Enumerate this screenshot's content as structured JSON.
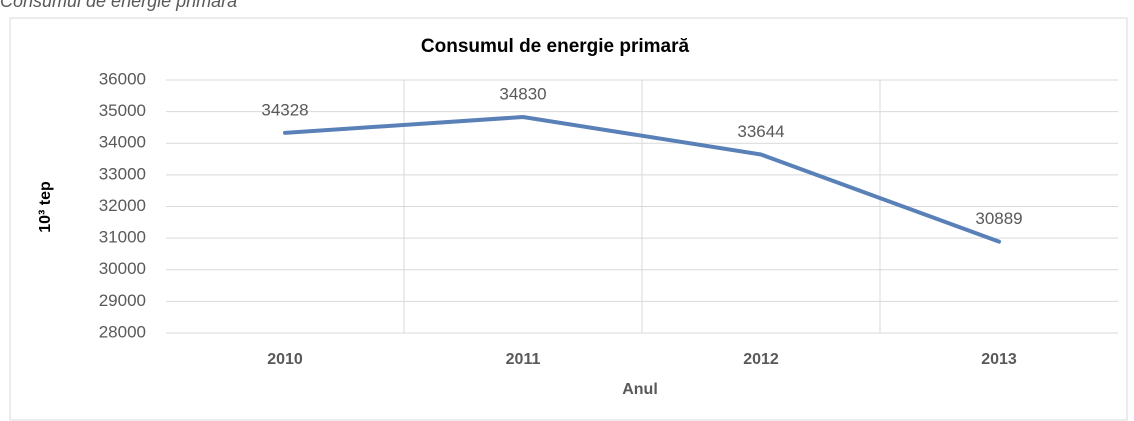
{
  "caption": "Consumul de energie primară",
  "chart_data": {
    "type": "line",
    "title": "Consumul de energie primară",
    "x_label": "Anul",
    "y_label": "10³ tep",
    "categories": [
      "2010",
      "2011",
      "2012",
      "2013"
    ],
    "values": [
      34328,
      34830,
      33644,
      30889
    ],
    "color": "#5a80b8",
    "ylim": [
      28000,
      36000
    ],
    "yticks": [
      28000,
      29000,
      30000,
      31000,
      32000,
      33000,
      34000,
      35000,
      36000
    ],
    "grid": true
  }
}
